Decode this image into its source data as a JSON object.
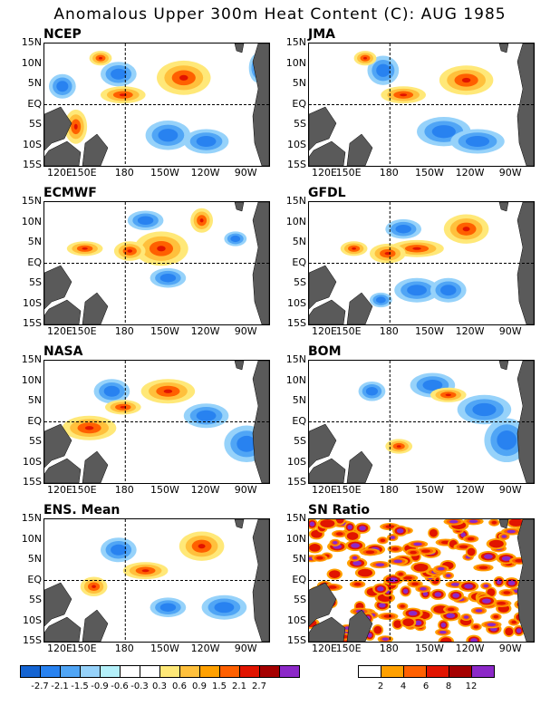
{
  "title": "Anomalous Upper 300m Heat Content (C): AUG 1985",
  "lat_labels": [
    "15N",
    "10N",
    "5N",
    "EQ",
    "5S",
    "10S",
    "15S"
  ],
  "lon_labels": [
    "120E",
    "150E",
    "180",
    "150W",
    "120W",
    "90W"
  ],
  "panels": [
    {
      "name": "NCEP",
      "warm": [
        [
          0.62,
          0.28,
          0.12,
          0.14
        ],
        [
          0.35,
          0.42,
          0.1,
          0.07
        ],
        [
          0.25,
          0.12,
          0.05,
          0.06
        ],
        [
          0.14,
          0.68,
          0.05,
          0.14
        ]
      ],
      "cool": [
        [
          0.08,
          0.35,
          0.06,
          0.1
        ],
        [
          0.33,
          0.25,
          0.08,
          0.1
        ],
        [
          0.55,
          0.75,
          0.1,
          0.12
        ],
        [
          0.72,
          0.8,
          0.1,
          0.1
        ],
        [
          0.95,
          0.2,
          0.04,
          0.12
        ]
      ]
    },
    {
      "name": "JMA",
      "warm": [
        [
          0.7,
          0.3,
          0.12,
          0.12
        ],
        [
          0.42,
          0.42,
          0.1,
          0.07
        ],
        [
          0.25,
          0.12,
          0.05,
          0.06
        ]
      ],
      "cool": [
        [
          0.33,
          0.22,
          0.07,
          0.12
        ],
        [
          0.6,
          0.72,
          0.12,
          0.12
        ],
        [
          0.75,
          0.8,
          0.12,
          0.1
        ]
      ]
    },
    {
      "name": "ECMWF",
      "warm": [
        [
          0.7,
          0.15,
          0.05,
          0.1
        ],
        [
          0.52,
          0.38,
          0.12,
          0.14
        ],
        [
          0.38,
          0.4,
          0.07,
          0.08
        ],
        [
          0.18,
          0.38,
          0.08,
          0.06
        ]
      ],
      "cool": [
        [
          0.45,
          0.15,
          0.08,
          0.08
        ],
        [
          0.85,
          0.3,
          0.05,
          0.06
        ],
        [
          0.55,
          0.62,
          0.08,
          0.08
        ]
      ]
    },
    {
      "name": "GFDL",
      "warm": [
        [
          0.7,
          0.22,
          0.1,
          0.12
        ],
        [
          0.48,
          0.38,
          0.12,
          0.07
        ],
        [
          0.35,
          0.42,
          0.08,
          0.08
        ],
        [
          0.2,
          0.38,
          0.06,
          0.06
        ]
      ],
      "cool": [
        [
          0.42,
          0.22,
          0.08,
          0.08
        ],
        [
          0.48,
          0.72,
          0.1,
          0.1
        ],
        [
          0.62,
          0.72,
          0.08,
          0.1
        ],
        [
          0.32,
          0.8,
          0.05,
          0.06
        ]
      ]
    },
    {
      "name": "NASA",
      "warm": [
        [
          0.55,
          0.25,
          0.12,
          0.1
        ],
        [
          0.2,
          0.55,
          0.12,
          0.1
        ],
        [
          0.35,
          0.38,
          0.08,
          0.06
        ]
      ],
      "cool": [
        [
          0.3,
          0.25,
          0.08,
          0.1
        ],
        [
          0.72,
          0.45,
          0.1,
          0.1
        ],
        [
          0.9,
          0.68,
          0.1,
          0.15
        ]
      ]
    },
    {
      "name": "BOM",
      "warm": [
        [
          0.62,
          0.28,
          0.08,
          0.06
        ],
        [
          0.4,
          0.7,
          0.06,
          0.06
        ]
      ],
      "cool": [
        [
          0.55,
          0.2,
          0.1,
          0.1
        ],
        [
          0.78,
          0.4,
          0.12,
          0.12
        ],
        [
          0.88,
          0.65,
          0.1,
          0.18
        ],
        [
          0.28,
          0.25,
          0.06,
          0.08
        ]
      ]
    },
    {
      "name": "ENS. Mean",
      "warm": [
        [
          0.7,
          0.22,
          0.1,
          0.12
        ],
        [
          0.45,
          0.42,
          0.1,
          0.07
        ],
        [
          0.22,
          0.55,
          0.06,
          0.08
        ]
      ],
      "cool": [
        [
          0.33,
          0.25,
          0.08,
          0.1
        ],
        [
          0.8,
          0.72,
          0.1,
          0.1
        ],
        [
          0.55,
          0.72,
          0.08,
          0.08
        ]
      ]
    },
    {
      "name": "SN Ratio",
      "snr": true
    }
  ],
  "anom_colorbar": {
    "colors": [
      "#1464d2",
      "#2882f0",
      "#50a5f5",
      "#96d2fa",
      "#b4f0fa",
      "#ffffff",
      "#ffffff",
      "#ffe878",
      "#ffc03c",
      "#ffa000",
      "#ff6000",
      "#e11400",
      "#a50000",
      "#8c28c8"
    ],
    "labels": [
      "-2.7",
      "-2.1",
      "-1.5",
      "-0.9",
      "-0.6",
      "-0.3",
      "0.3",
      "0.6",
      "0.9",
      "1.5",
      "2.1",
      "2.7"
    ]
  },
  "snr_colorbar": {
    "colors": [
      "#ffffff",
      "#ffa000",
      "#ff6000",
      "#e11400",
      "#a50000",
      "#8c28c8"
    ],
    "labels": [
      "2",
      "4",
      "6",
      "8",
      "12"
    ]
  }
}
